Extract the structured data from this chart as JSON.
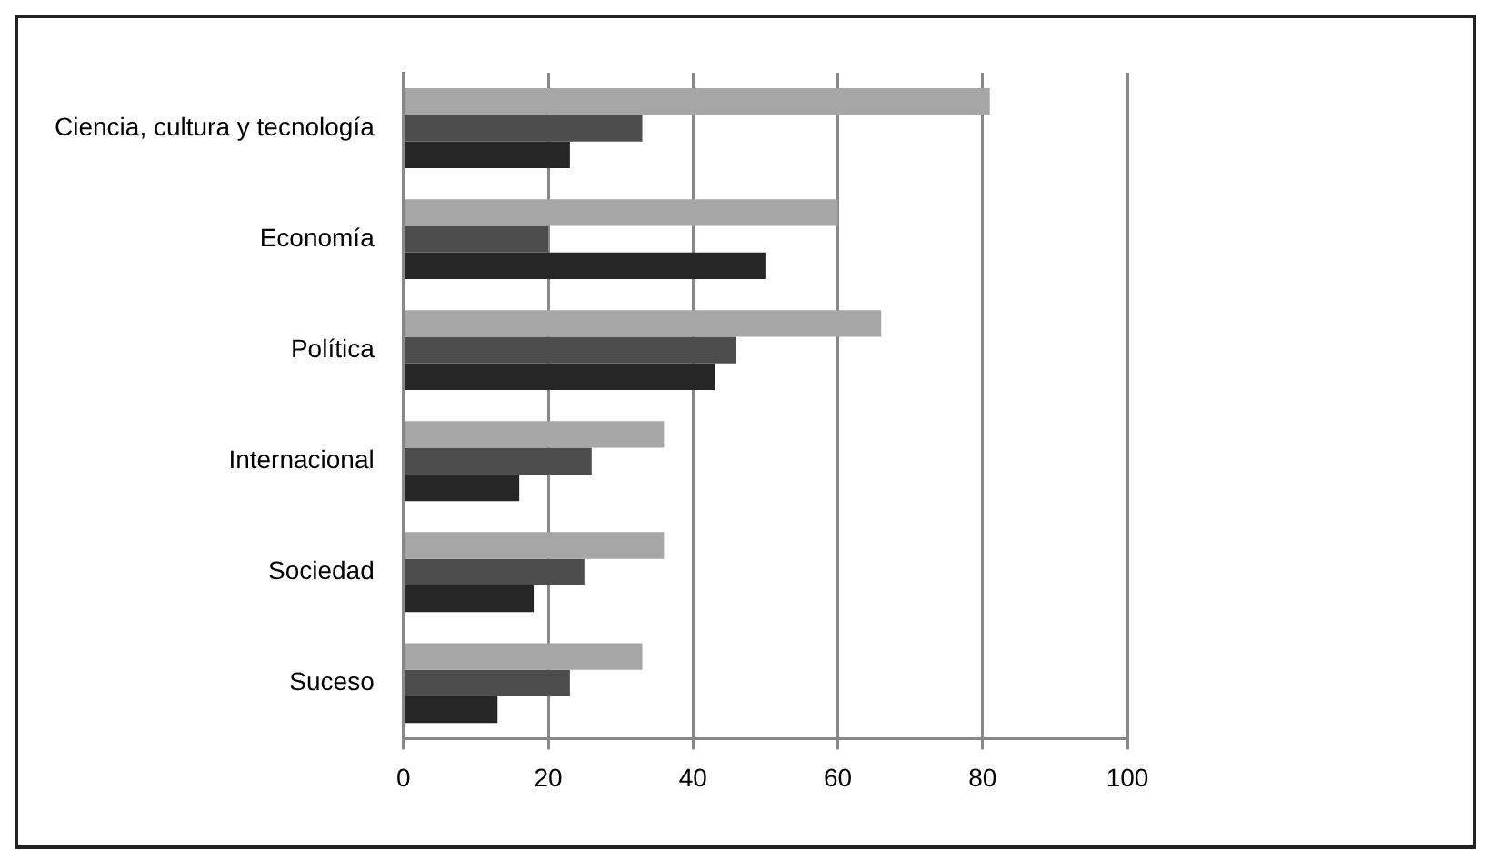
{
  "chart_data": {
    "type": "bar",
    "orientation": "horizontal",
    "categories": [
      "Ciencia, cultura y tecnología",
      "Economía",
      "Política",
      "Internacional",
      "Sociedad",
      "Suceso"
    ],
    "series": [
      {
        "color": "#a6a6a6",
        "values": [
          81,
          60,
          66,
          36,
          36,
          33
        ]
      },
      {
        "color": "#4d4d4d",
        "values": [
          33,
          20,
          46,
          26,
          25,
          23
        ]
      },
      {
        "color": "#262626",
        "values": [
          23,
          50,
          43,
          16,
          18,
          13
        ]
      }
    ],
    "xlim": [
      0,
      100
    ],
    "xticks": [
      0,
      20,
      40,
      60,
      80,
      100
    ],
    "grid": "x",
    "legend": false
  }
}
